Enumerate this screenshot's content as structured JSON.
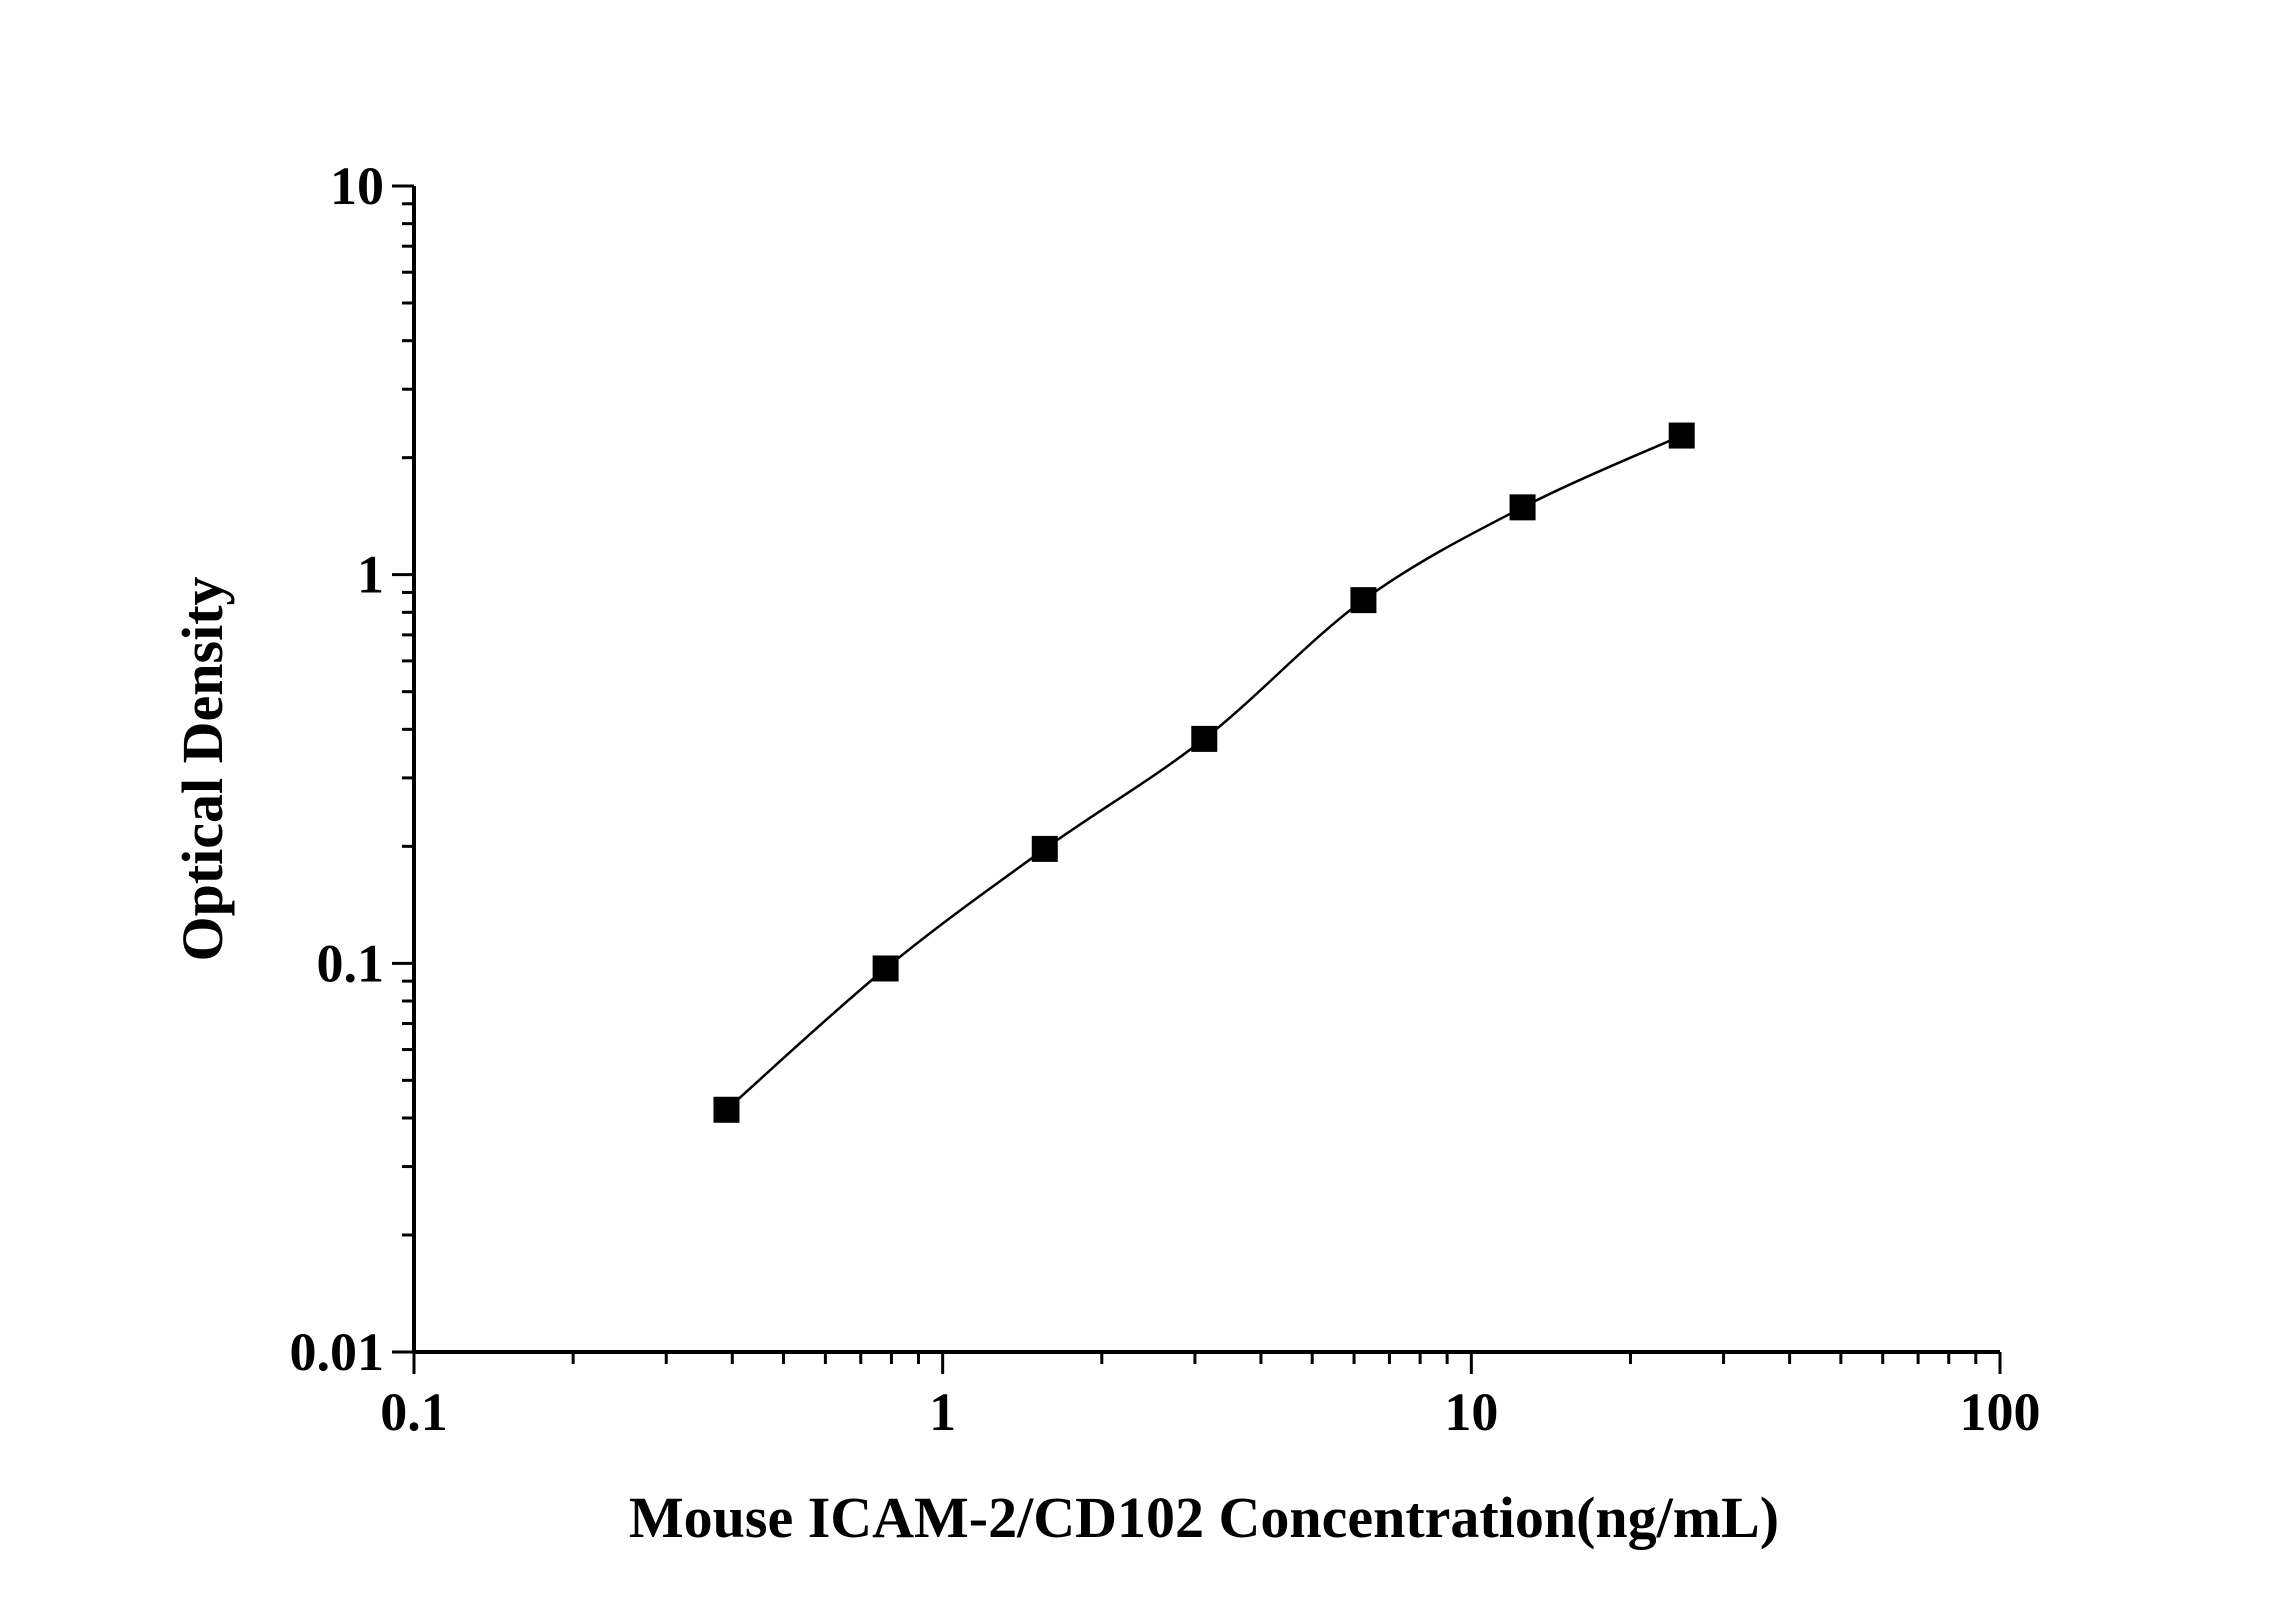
{
  "chart_data": {
    "type": "scatter",
    "xlabel": "Mouse ICAM-2/CD102 Concentration(ng/mL)",
    "ylabel": "Optical Density",
    "x_scale": "log",
    "y_scale": "log",
    "xlim": [
      0.1,
      100
    ],
    "ylim": [
      0.01,
      10
    ],
    "x_tick_labels": [
      "0.1",
      "1",
      "10",
      "100"
    ],
    "y_tick_labels": [
      "0.01",
      "0.1",
      "1",
      "10"
    ],
    "grid": false,
    "legend": "none",
    "series": [
      {
        "x": [
          0.39,
          0.78,
          1.56,
          3.125,
          6.25,
          12.5,
          25
        ],
        "y": [
          0.042,
          0.097,
          0.197,
          0.378,
          0.86,
          1.49,
          2.28
        ],
        "marker": "square",
        "line": "smooth-fit",
        "color": "#000000"
      }
    ]
  }
}
